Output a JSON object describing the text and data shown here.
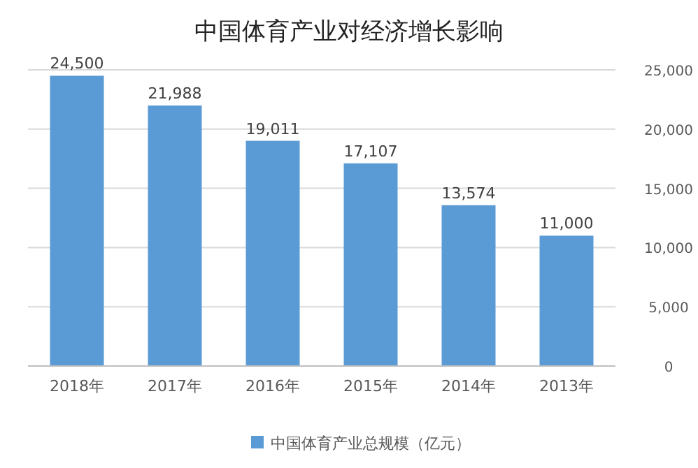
{
  "chart_data": {
    "type": "bar",
    "title": "中国体育产业对经济增长影响",
    "categories": [
      "2018年",
      "2017年",
      "2016年",
      "2015年",
      "2014年",
      "2013年"
    ],
    "series": [
      {
        "name": "中国体育产业总规模（亿元）",
        "color": "#5b9bd5",
        "values": [
          24500,
          21988,
          19011,
          17107,
          13574,
          11000
        ],
        "value_labels": [
          "24,500",
          "21,988",
          "19,011",
          "17,107",
          "13,574",
          "11,000"
        ]
      }
    ],
    "ylim": [
      0,
      25000
    ],
    "yticks": [
      0,
      {
        "value": 5000,
        "label": "5,000"
      },
      {
        "value": 10000,
        "label": "10,000"
      },
      {
        "value": 15000,
        "label": "15,000"
      },
      {
        "value": 20000,
        "label": "20,000"
      },
      {
        "value": 25000,
        "label": "25,000"
      }
    ],
    "grid": "y",
    "legend": "bottom"
  }
}
